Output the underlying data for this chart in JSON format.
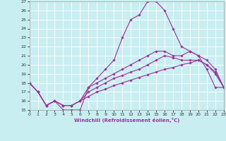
{
  "xlabel": "Windchill (Refroidissement éolien,°C)",
  "xlim": [
    0,
    23
  ],
  "ylim": [
    15,
    27
  ],
  "yticks": [
    15,
    16,
    17,
    18,
    19,
    20,
    21,
    22,
    23,
    24,
    25,
    26,
    27
  ],
  "xticks": [
    0,
    1,
    2,
    3,
    4,
    5,
    6,
    7,
    8,
    9,
    10,
    11,
    12,
    13,
    14,
    15,
    16,
    17,
    18,
    19,
    20,
    21,
    22,
    23
  ],
  "background_color": "#c9eef1",
  "grid_color": "#ffffff",
  "line_color": "#993399",
  "line_width": 0.8,
  "marker": "D",
  "marker_size": 1.8,
  "curves": [
    [
      18,
      17,
      15.5,
      16,
      15,
      15,
      15,
      17.5,
      18.5,
      19.5,
      20.5,
      23,
      25,
      25.5,
      27,
      27,
      26,
      24,
      22,
      21.5,
      21,
      19.5,
      17.5,
      17.5
    ],
    [
      18,
      17,
      15.5,
      16,
      15.5,
      15.5,
      16.0,
      17.5,
      18.0,
      18.5,
      19.0,
      19.5,
      20.0,
      20.5,
      21.0,
      21.5,
      21.5,
      21.0,
      21.0,
      21.5,
      21.0,
      20.5,
      19.5,
      17.5
    ],
    [
      18,
      17,
      15.5,
      16,
      15.5,
      15.5,
      16.0,
      17.0,
      17.5,
      18.0,
      18.5,
      18.8,
      19.2,
      19.5,
      20.0,
      20.5,
      21.0,
      20.8,
      20.5,
      20.5,
      20.5,
      20.0,
      19.2,
      17.5
    ],
    [
      18,
      17,
      15.5,
      16,
      15.5,
      15.5,
      16.0,
      16.5,
      17.0,
      17.3,
      17.7,
      18.0,
      18.3,
      18.6,
      18.9,
      19.2,
      19.5,
      19.7,
      20.0,
      20.2,
      20.5,
      20.0,
      19.0,
      17.5
    ]
  ]
}
